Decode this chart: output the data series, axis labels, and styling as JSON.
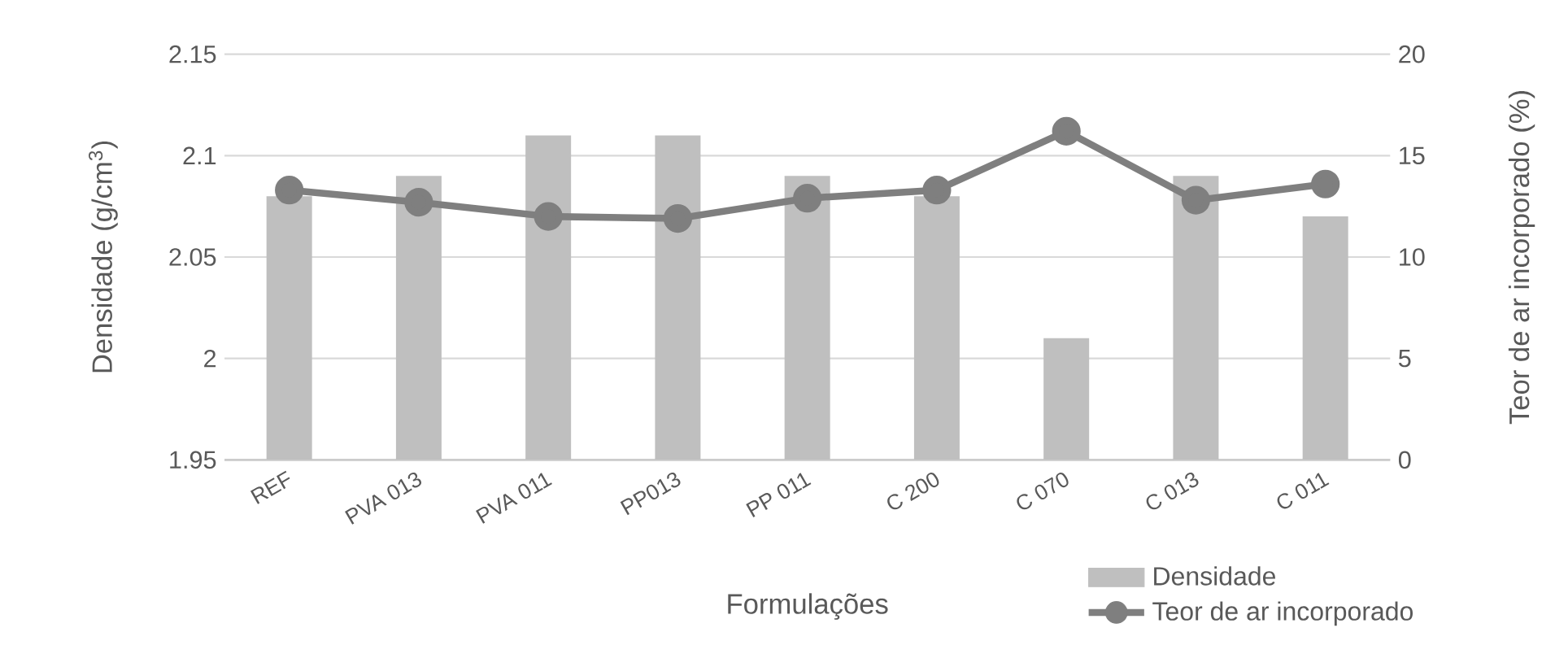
{
  "chart_data": {
    "type": "bar",
    "xlabel": "Formulações",
    "ylabel": "Densidade (g/cm$^{3}$)",
    "y2label": "Teor de ar incorporado (%)",
    "categories": [
      "REF",
      "PVA 013",
      "PVA 011",
      "PP013",
      "PP 011",
      "C 200",
      "C 070",
      "C 013",
      "C 011"
    ],
    "series": [
      {
        "name": "Densidade",
        "color": "#bfbfbf",
        "values": [
          2.08,
          2.09,
          2.11,
          2.11,
          2.09,
          2.08,
          2.01,
          2.09,
          2.07
        ]
      },
      {
        "name": "Teor de ar incorporado",
        "type": "line",
        "axis": "y2",
        "color": "#7f7f7f",
        "marker": "circle",
        "values": [
          13.3,
          12.7,
          12.0,
          11.9,
          12.9,
          13.3,
          16.2,
          12.8,
          13.6
        ]
      }
    ],
    "ylim": [
      1.95,
      2.15
    ],
    "yticks": [
      1.95,
      2,
      2.05,
      2.1,
      2.15
    ],
    "y2lim": [
      0,
      20
    ],
    "y2ticks": [
      0,
      5,
      10,
      15,
      20
    ],
    "grid": "y",
    "legend": "bottom right"
  }
}
